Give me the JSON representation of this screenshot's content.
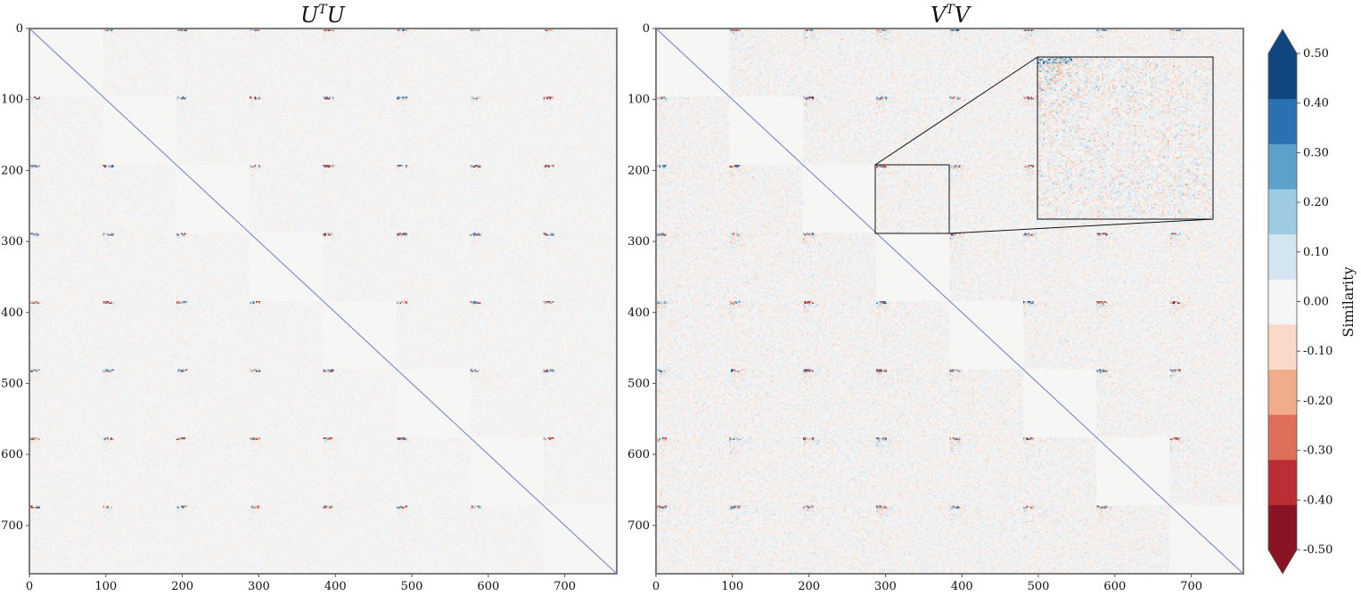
{
  "chart_data": [
    {
      "type": "heatmap",
      "title": "U^T U",
      "title_base": "U",
      "title_sup": "T",
      "title_end": "U",
      "matrix_size": 768,
      "block_size": 96,
      "xlim": [
        0,
        768
      ],
      "ylim": [
        768,
        0
      ],
      "xticks": [
        0,
        100,
        200,
        300,
        400,
        500,
        600,
        700
      ],
      "yticks": [
        0,
        100,
        200,
        300,
        400,
        500,
        600,
        700
      ],
      "diagonal_blocks_value": 0.0,
      "diagonal_line_value": 1.0,
      "off_diagonal_noise_std": 0.03,
      "corner_features": true
    },
    {
      "type": "heatmap",
      "title": "V^T V",
      "title_base": "V",
      "title_sup": "T",
      "title_end": "V",
      "matrix_size": 768,
      "block_size": 96,
      "xlim": [
        0,
        768
      ],
      "ylim": [
        768,
        0
      ],
      "xticks": [
        0,
        100,
        200,
        300,
        400,
        500,
        600,
        700
      ],
      "yticks": [
        0,
        100,
        200,
        300,
        400,
        500,
        600,
        700
      ],
      "diagonal_blocks_value": 0.0,
      "diagonal_line_value": 1.0,
      "off_diagonal_noise_std": 0.06,
      "corner_features": true,
      "inset": {
        "source_x": [
          288,
          384
        ],
        "source_y": [
          192,
          288
        ],
        "zoom": "enlarged view of block (row 192–288, col 288–384)"
      }
    }
  ],
  "colorbar": {
    "label": "Similarity",
    "ticks": [
      "0.50",
      "0.40",
      "0.30",
      "0.20",
      "0.10",
      "0.00",
      "-0.10",
      "-0.20",
      "-0.30",
      "-0.40",
      "-0.50"
    ],
    "range": [
      -0.5,
      0.5
    ],
    "extend": "both",
    "colors": [
      "#891424",
      "#bc2e33",
      "#df6f58",
      "#f1ac8b",
      "#fad9c8",
      "#f6f6f6",
      "#d2e5f0",
      "#9dcbe2",
      "#5ba1cb",
      "#2a71b2",
      "#0f4680"
    ],
    "over_color": "#0f4680",
    "under_color": "#891424"
  },
  "colors": {
    "background": "#f6f6f4",
    "diagonal": "#6d7fc2",
    "frame": "#7d7d7d"
  }
}
